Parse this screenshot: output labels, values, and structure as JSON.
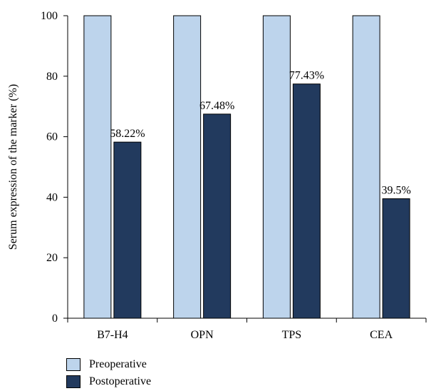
{
  "chart_data": {
    "type": "bar",
    "title": "",
    "xlabel": "",
    "ylabel": "Serum expression of the marker (%)",
    "categories": [
      "B7-H4",
      "OPN",
      "TPS",
      "CEA"
    ],
    "ylim": [
      0,
      100
    ],
    "yticks": [
      "0",
      "20",
      "40",
      "60",
      "80",
      "100"
    ],
    "grid": false,
    "legend_position": "bottom-left",
    "series": [
      {
        "name": "Preoperative",
        "color": "#bdd4ec",
        "values": [
          100,
          100,
          100,
          100
        ],
        "labels": [
          "",
          "",
          "",
          ""
        ]
      },
      {
        "name": "Postoperative",
        "color": "#223a5e",
        "values": [
          58.22,
          67.48,
          77.43,
          39.5
        ],
        "labels": [
          "58.22%",
          "67.48%",
          "77.43%",
          "39.5%"
        ]
      }
    ]
  }
}
